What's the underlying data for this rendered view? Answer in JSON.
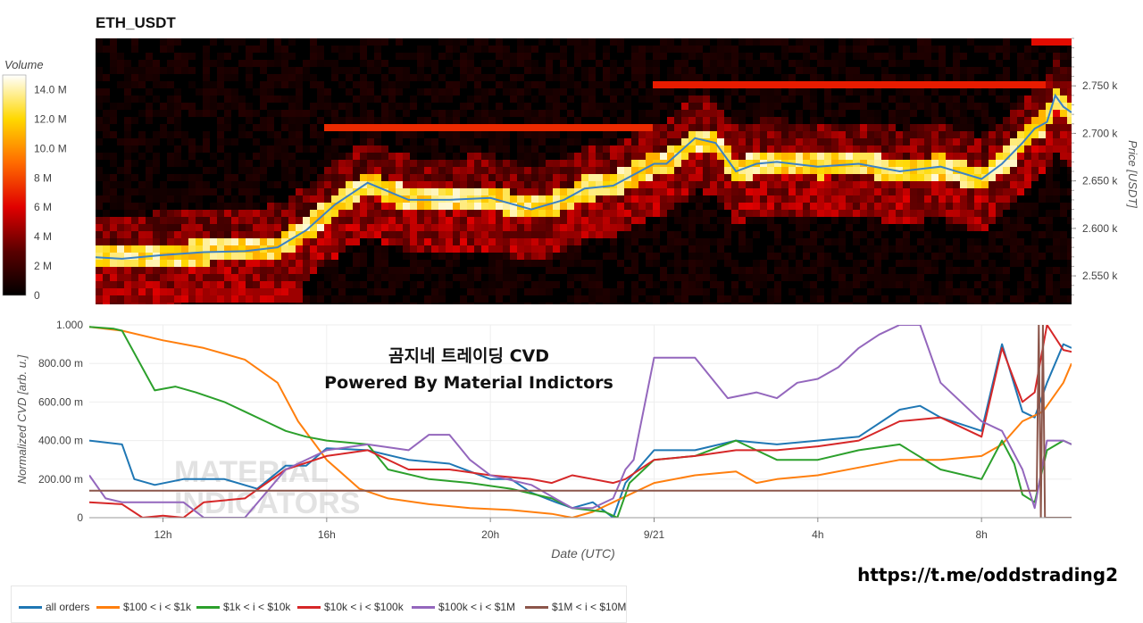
{
  "title": "ETH_USDT",
  "overlay": {
    "line1": "곰지네 트레이딩 CVD",
    "line2": "Powered By Material Indictors"
  },
  "watermark": {
    "line1": "MATERIAL",
    "line2": "INDICATORS"
  },
  "link": "https://t.me/oddstrading2",
  "colors": {
    "all": "#1f77b4",
    "s100": "#ff7f0e",
    "s1k": "#2ca02c",
    "s10k": "#d62728",
    "s100k": "#9467bd",
    "s1m": "#8c564b"
  },
  "chart_data": [
    {
      "type": "heatmap",
      "colorbar": {
        "title": "Volume",
        "ticks": [
          "0",
          "2 M",
          "4 M",
          "6 M",
          "8 M",
          "10.0 M",
          "12.0 M",
          "14.0 M"
        ],
        "range": [
          0,
          15000000
        ]
      },
      "yaxis": {
        "label": "Price [USDT]",
        "ticks": [
          "2.550 k",
          "2.600 k",
          "2.650 k",
          "2.700 k",
          "2.750 k"
        ],
        "range": [
          2520,
          2800
        ]
      },
      "price_line": {
        "color": "#3b82c4",
        "x": [
          10.2,
          11.0,
          12.0,
          13.0,
          14.0,
          14.8,
          15.5,
          16.2,
          17.0,
          18.0,
          19.0,
          20.0,
          21.0,
          21.8,
          22.3,
          23.0,
          24.0,
          24.3,
          25.0,
          25.5,
          26.0,
          26.5,
          27.0,
          28.0,
          29.0,
          30.0,
          31.0,
          32.0,
          32.5,
          33.0,
          33.3,
          33.6,
          33.8,
          34.0,
          34.2
        ],
        "y": [
          2570,
          2568,
          2572,
          2575,
          2576,
          2580,
          2598,
          2625,
          2648,
          2630,
          2630,
          2632,
          2620,
          2630,
          2642,
          2645,
          2668,
          2668,
          2695,
          2690,
          2660,
          2668,
          2670,
          2665,
          2668,
          2660,
          2665,
          2652,
          2668,
          2690,
          2705,
          2712,
          2740,
          2728,
          2722
        ]
      }
    },
    {
      "type": "line",
      "xlabel": "Date (UTC)",
      "ylabel": "Normalized CVD [arb. u.]",
      "x_ticks": [
        "12h",
        "16h",
        "20h",
        "9/21",
        "4h",
        "8h"
      ],
      "y_ticks": [
        "0",
        "200.00 m",
        "400.00 m",
        "600.00 m",
        "800.00 m",
        "1.000"
      ],
      "xlim": [
        10.2,
        34.2
      ],
      "ylim": [
        0,
        1
      ],
      "series": [
        {
          "name": "all orders",
          "color": "#1f77b4",
          "x": [
            10.2,
            11.0,
            11.3,
            11.8,
            12.5,
            13.5,
            14.3,
            15.0,
            15.5,
            16.0,
            17.0,
            18.0,
            19.0,
            20.0,
            20.5,
            21.0,
            21.6,
            22.0,
            22.5,
            23.0,
            23.3,
            24.0,
            25.0,
            26.0,
            27.0,
            28.0,
            29.0,
            30.0,
            30.5,
            31.0,
            32.0,
            32.5,
            33.0,
            33.3,
            33.6,
            34.0,
            34.2
          ],
          "y": [
            0.4,
            0.38,
            0.2,
            0.17,
            0.2,
            0.2,
            0.15,
            0.27,
            0.27,
            0.36,
            0.35,
            0.3,
            0.28,
            0.2,
            0.2,
            0.13,
            0.08,
            0.05,
            0.08,
            0.0,
            0.18,
            0.35,
            0.35,
            0.4,
            0.38,
            0.4,
            0.42,
            0.56,
            0.58,
            0.52,
            0.45,
            0.9,
            0.55,
            0.52,
            0.7,
            0.9,
            0.88
          ]
        },
        {
          "name": "$100 < i < $1k",
          "color": "#ff7f0e",
          "x": [
            10.2,
            11.0,
            12.0,
            13.0,
            14.0,
            14.8,
            15.3,
            16.0,
            16.8,
            17.5,
            18.5,
            19.5,
            20.5,
            21.5,
            22.0,
            22.5,
            23.0,
            24.0,
            25.0,
            26.0,
            26.5,
            27.0,
            28.0,
            29.0,
            30.0,
            31.0,
            32.0,
            32.5,
            33.0,
            33.5,
            34.0,
            34.2
          ],
          "y": [
            0.99,
            0.97,
            0.92,
            0.88,
            0.82,
            0.7,
            0.5,
            0.3,
            0.15,
            0.1,
            0.07,
            0.05,
            0.04,
            0.02,
            0.0,
            0.03,
            0.08,
            0.18,
            0.22,
            0.24,
            0.18,
            0.2,
            0.22,
            0.26,
            0.3,
            0.3,
            0.32,
            0.38,
            0.5,
            0.55,
            0.7,
            0.8
          ]
        },
        {
          "name": "$1k < i < $10k",
          "color": "#2ca02c",
          "x": [
            10.2,
            10.8,
            11.0,
            11.8,
            12.3,
            12.8,
            13.5,
            14.0,
            14.5,
            15.0,
            15.5,
            16.0,
            17.0,
            17.5,
            18.5,
            19.5,
            20.5,
            21.5,
            22.0,
            22.8,
            23.1,
            23.4,
            24.0,
            25.0,
            26.0,
            27.0,
            28.0,
            29.0,
            30.0,
            31.0,
            32.0,
            32.5,
            32.8,
            33.0,
            33.3,
            33.6,
            34.0,
            34.2
          ],
          "y": [
            0.99,
            0.98,
            0.97,
            0.66,
            0.68,
            0.65,
            0.6,
            0.55,
            0.5,
            0.45,
            0.42,
            0.4,
            0.38,
            0.25,
            0.2,
            0.18,
            0.15,
            0.1,
            0.05,
            0.03,
            0.0,
            0.18,
            0.3,
            0.32,
            0.4,
            0.3,
            0.3,
            0.35,
            0.38,
            0.25,
            0.2,
            0.4,
            0.28,
            0.12,
            0.08,
            0.35,
            0.4,
            0.38
          ]
        },
        {
          "name": "$10k < i < $100k",
          "color": "#d62728",
          "x": [
            10.2,
            11.0,
            11.5,
            12.0,
            12.5,
            13.0,
            14.0,
            15.0,
            16.0,
            17.0,
            18.0,
            19.0,
            20.0,
            21.0,
            21.5,
            22.0,
            22.5,
            23.0,
            23.3,
            24.0,
            25.0,
            26.0,
            27.0,
            28.0,
            29.0,
            30.0,
            31.0,
            32.0,
            32.5,
            33.0,
            33.3,
            33.6,
            34.0,
            34.2
          ],
          "y": [
            0.08,
            0.07,
            0.0,
            0.01,
            0.0,
            0.08,
            0.1,
            0.25,
            0.32,
            0.35,
            0.25,
            0.25,
            0.22,
            0.2,
            0.18,
            0.22,
            0.2,
            0.18,
            0.2,
            0.3,
            0.32,
            0.35,
            0.35,
            0.37,
            0.4,
            0.5,
            0.52,
            0.42,
            0.88,
            0.6,
            0.65,
            1.0,
            0.87,
            0.86
          ]
        },
        {
          "name": "$100k < i < $1M",
          "color": "#9467bd",
          "x": [
            10.2,
            10.6,
            11.0,
            12.0,
            12.5,
            13.0,
            13.5,
            14.0,
            15.0,
            16.0,
            17.0,
            18.0,
            18.5,
            19.0,
            19.5,
            20.0,
            21.0,
            22.0,
            22.5,
            23.0,
            23.3,
            23.5,
            24.0,
            24.5,
            25.0,
            25.8,
            26.5,
            27.0,
            27.5,
            28.0,
            28.5,
            29.0,
            29.5,
            30.0,
            30.5,
            31.0,
            32.0,
            32.5,
            33.0,
            33.3,
            33.6,
            34.0,
            34.2
          ],
          "y": [
            0.22,
            0.1,
            0.08,
            0.08,
            0.08,
            0.0,
            0.0,
            0.0,
            0.25,
            0.35,
            0.38,
            0.35,
            0.43,
            0.43,
            0.3,
            0.22,
            0.17,
            0.05,
            0.05,
            0.1,
            0.25,
            0.3,
            0.83,
            0.83,
            0.83,
            0.62,
            0.65,
            0.62,
            0.7,
            0.72,
            0.78,
            0.88,
            0.95,
            1.0,
            1.0,
            0.7,
            0.5,
            0.45,
            0.25,
            0.05,
            0.4,
            0.4,
            0.38
          ]
        },
        {
          "name": "$1M < i < $10M",
          "color": "#8c564b",
          "x": [
            10.2,
            13.0,
            16.0,
            20.0,
            24.0,
            28.0,
            32.0,
            33.35,
            33.4,
            33.45,
            33.5,
            33.55,
            34.2
          ],
          "y": [
            0.14,
            0.14,
            0.14,
            0.14,
            0.14,
            0.14,
            0.14,
            0.14,
            1.0,
            0.0,
            1.0,
            0.0,
            0.0
          ]
        }
      ]
    }
  ]
}
